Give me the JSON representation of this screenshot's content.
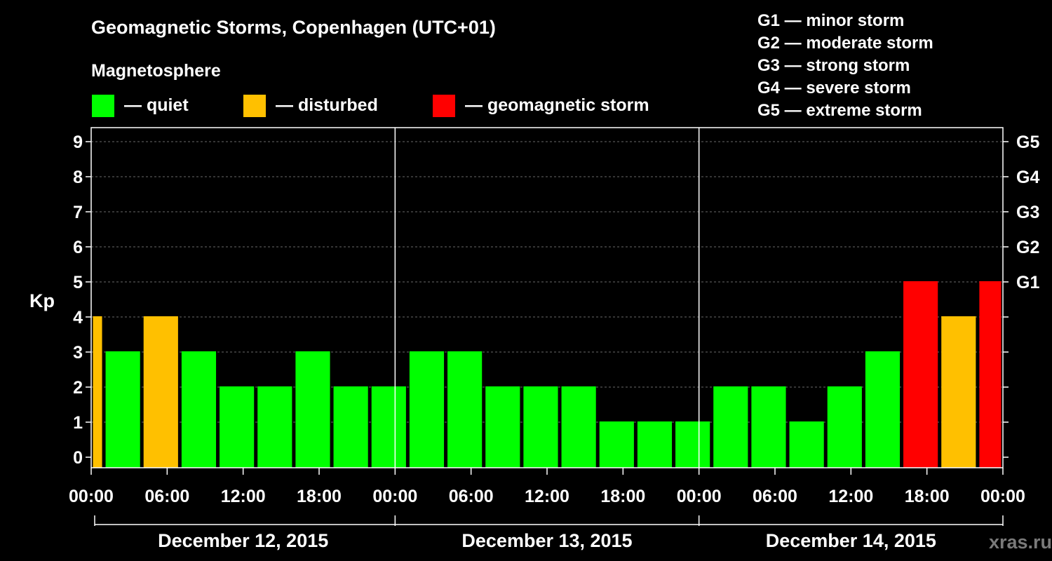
{
  "chart_data": {
    "type": "bar",
    "title": "Geomagnetic Storms, Copenhagen (UTC+01)",
    "legend_title": "Magnetosphere",
    "legend": [
      {
        "label": "— quiet",
        "color": "#00ff00"
      },
      {
        "label": "— disturbed",
        "color": "#ffc000"
      },
      {
        "label": "— geomagnetic storm",
        "color": "#ff0000"
      }
    ],
    "storm_scale": [
      "G1 — minor storm",
      "G2 — moderate storm",
      "G3 — strong storm",
      "G4 — severe storm",
      "G5 — extreme storm"
    ],
    "ylabel": "Kp",
    "ylim": [
      0,
      9
    ],
    "y_ticks": [
      "0",
      "1",
      "2",
      "3",
      "4",
      "5",
      "6",
      "7",
      "8",
      "9"
    ],
    "g_ticks": [
      {
        "kp": 5,
        "label": "G1"
      },
      {
        "kp": 6,
        "label": "G2"
      },
      {
        "kp": 7,
        "label": "G3"
      },
      {
        "kp": 8,
        "label": "G4"
      },
      {
        "kp": 9,
        "label": "G5"
      }
    ],
    "x_range_hours": [
      0,
      72
    ],
    "x_tick_labels": [
      "00:00",
      "06:00",
      "12:00",
      "18:00",
      "00:00",
      "06:00",
      "12:00",
      "18:00",
      "00:00",
      "06:00",
      "12:00",
      "18:00",
      "00:00"
    ],
    "days": [
      "December 12, 2015",
      "December 13, 2015",
      "December 14, 2015"
    ],
    "bars": [
      {
        "start_hour": 0,
        "end_hour": 1,
        "kp": 4,
        "status": "disturbed"
      },
      {
        "start_hour": 1,
        "end_hour": 4,
        "kp": 3,
        "status": "quiet"
      },
      {
        "start_hour": 4,
        "end_hour": 7,
        "kp": 4,
        "status": "disturbed"
      },
      {
        "start_hour": 7,
        "end_hour": 10,
        "kp": 3,
        "status": "quiet"
      },
      {
        "start_hour": 10,
        "end_hour": 13,
        "kp": 2,
        "status": "quiet"
      },
      {
        "start_hour": 13,
        "end_hour": 16,
        "kp": 2,
        "status": "quiet"
      },
      {
        "start_hour": 16,
        "end_hour": 19,
        "kp": 3,
        "status": "quiet"
      },
      {
        "start_hour": 19,
        "end_hour": 22,
        "kp": 2,
        "status": "quiet"
      },
      {
        "start_hour": 22,
        "end_hour": 25,
        "kp": 2,
        "status": "quiet"
      },
      {
        "start_hour": 25,
        "end_hour": 28,
        "kp": 3,
        "status": "quiet"
      },
      {
        "start_hour": 28,
        "end_hour": 31,
        "kp": 3,
        "status": "quiet"
      },
      {
        "start_hour": 31,
        "end_hour": 34,
        "kp": 2,
        "status": "quiet"
      },
      {
        "start_hour": 34,
        "end_hour": 37,
        "kp": 2,
        "status": "quiet"
      },
      {
        "start_hour": 37,
        "end_hour": 40,
        "kp": 2,
        "status": "quiet"
      },
      {
        "start_hour": 40,
        "end_hour": 43,
        "kp": 1,
        "status": "quiet"
      },
      {
        "start_hour": 43,
        "end_hour": 46,
        "kp": 1,
        "status": "quiet"
      },
      {
        "start_hour": 46,
        "end_hour": 49,
        "kp": 1,
        "status": "quiet"
      },
      {
        "start_hour": 49,
        "end_hour": 52,
        "kp": 2,
        "status": "quiet"
      },
      {
        "start_hour": 52,
        "end_hour": 55,
        "kp": 2,
        "status": "quiet"
      },
      {
        "start_hour": 55,
        "end_hour": 58,
        "kp": 1,
        "status": "quiet"
      },
      {
        "start_hour": 58,
        "end_hour": 61,
        "kp": 2,
        "status": "quiet"
      },
      {
        "start_hour": 61,
        "end_hour": 64,
        "kp": 3,
        "status": "quiet"
      },
      {
        "start_hour": 64,
        "end_hour": 67,
        "kp": 5,
        "status": "storm"
      },
      {
        "start_hour": 67,
        "end_hour": 70,
        "kp": 4,
        "status": "disturbed"
      },
      {
        "start_hour": 70,
        "end_hour": 72,
        "kp": 5,
        "status": "storm"
      }
    ],
    "status_colors": {
      "quiet": "#00ff00",
      "disturbed": "#ffc000",
      "storm": "#ff0000"
    },
    "grid": true
  },
  "watermark": "xras.ru"
}
